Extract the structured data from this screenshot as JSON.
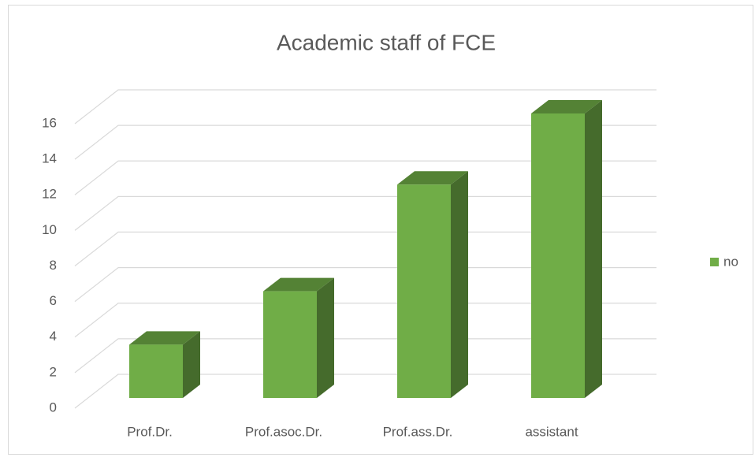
{
  "chart_data": {
    "type": "bar3d",
    "title": "Academic staff of FCE",
    "categories": [
      "Prof.Dr.",
      "Prof.asoc.Dr.",
      "Prof.ass.Dr.",
      "assistant"
    ],
    "series": [
      {
        "name": "no",
        "color": "#70ad47",
        "values": [
          3,
          6,
          12,
          16
        ]
      }
    ],
    "ylim": [
      0,
      16
    ],
    "yticks": [
      0,
      2,
      4,
      6,
      8,
      10,
      12,
      14,
      16
    ],
    "grid": true,
    "legend": "right"
  }
}
